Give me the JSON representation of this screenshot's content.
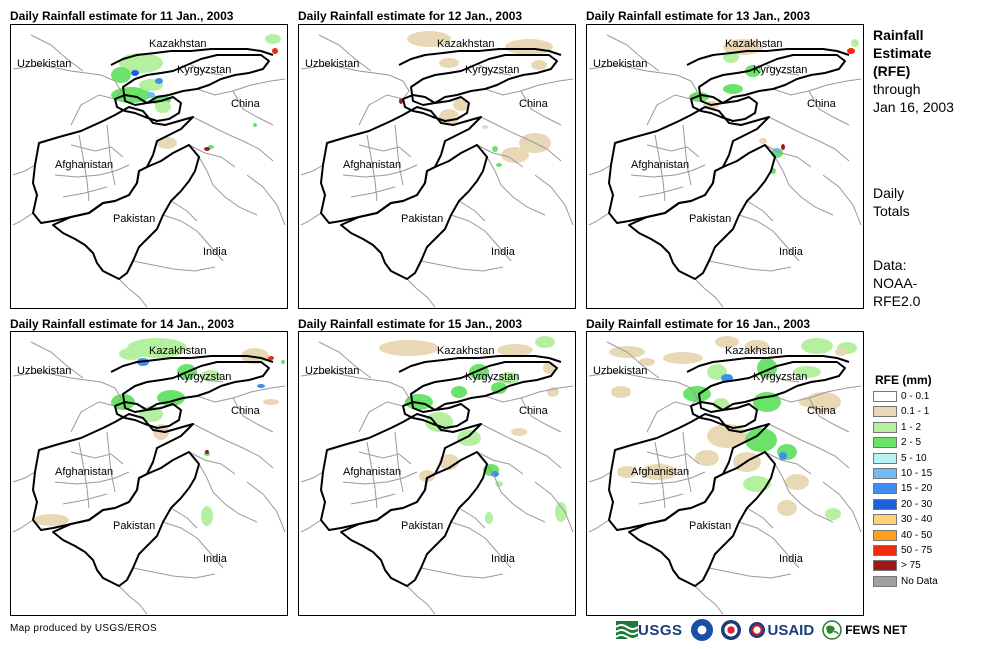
{
  "panels": [
    {
      "title": "Daily Rainfall estimate for 11 Jan., 2003"
    },
    {
      "title": "Daily Rainfall estimate for 12 Jan., 2003"
    },
    {
      "title": "Daily Rainfall estimate for 13 Jan., 2003"
    },
    {
      "title": "Daily Rainfall estimate for 14 Jan., 2003"
    },
    {
      "title": "Daily Rainfall estimate for 15 Jan., 2003"
    },
    {
      "title": "Daily Rainfall estimate for 16 Jan., 2003"
    }
  ],
  "map_labels": {
    "kazakhstan": "Kazakhstan",
    "uzbekistan": "Uzbekistan",
    "kyrgyzstan": "Kyrgyzstan",
    "china": "China",
    "afghanistan": "Afghanistan",
    "pakistan": "Pakistan",
    "india": "India"
  },
  "side": {
    "title_1": "Rainfall",
    "title_2": "Estimate",
    "title_3": "(RFE)",
    "through_1": "through",
    "through_2": "Jan 16, 2003",
    "daily_1": "Daily",
    "daily_2": "Totals",
    "data_1": "Data:",
    "data_2": "NOAA-",
    "data_3": "RFE2.0"
  },
  "legend": {
    "title": "RFE (mm)",
    "items": [
      {
        "label": "0 - 0.1",
        "color": "#ffffff"
      },
      {
        "label": "0.1 - 1",
        "color": "#e9d8b6"
      },
      {
        "label": "1 - 2",
        "color": "#b5f0a0"
      },
      {
        "label": "2 - 5",
        "color": "#6be36b"
      },
      {
        "label": "5 - 10",
        "color": "#b8f2f2"
      },
      {
        "label": "10 - 15",
        "color": "#72b8f5"
      },
      {
        "label": "15 - 20",
        "color": "#3f8ff0"
      },
      {
        "label": "20 - 30",
        "color": "#1f5fd8"
      },
      {
        "label": "30 - 40",
        "color": "#ffd27a"
      },
      {
        "label": "40 - 50",
        "color": "#ff9f1c"
      },
      {
        "label": "50 - 75",
        "color": "#f02a0a"
      },
      {
        "label": "> 75",
        "color": "#a01818"
      },
      {
        "label": "No Data",
        "color": "#a0a0a0"
      }
    ]
  },
  "footer": {
    "credit": "Map produced by USGS/EROS",
    "logo_usgs": "USGS",
    "logo_usaid": "USAID",
    "logo_fews": "FEWS NET"
  }
}
